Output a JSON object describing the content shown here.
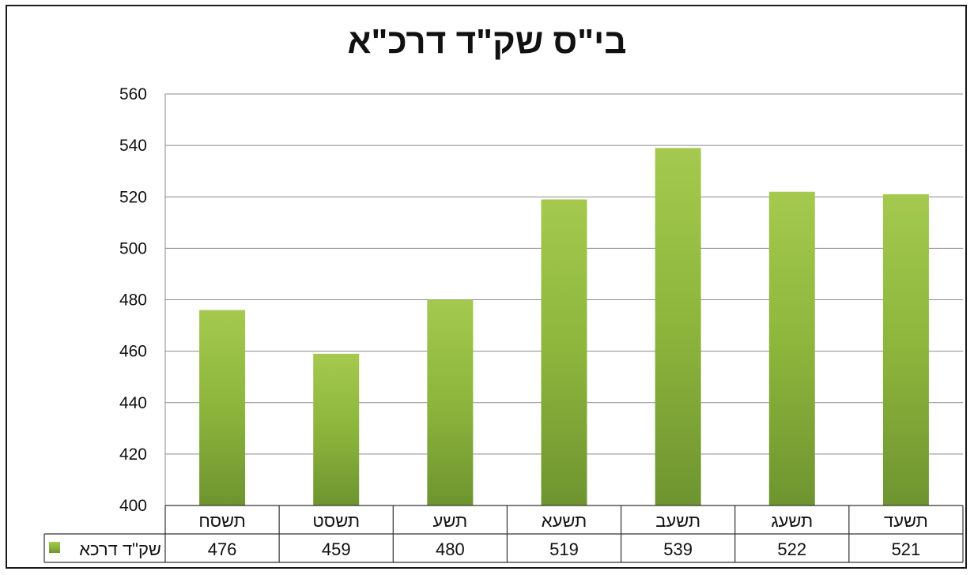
{
  "chart_data": {
    "type": "bar",
    "title": "בי\"ס שק\"ד דרכ\"א",
    "categories": [
      "תשסח",
      "תשסט",
      "תשע",
      "תשעא",
      "תשעב",
      "תשעג",
      "תשעד"
    ],
    "series": [
      {
        "name": "שק\"ד דרכא",
        "values": [
          476,
          459,
          480,
          519,
          539,
          522,
          521
        ],
        "color": "#8DB53C"
      }
    ],
    "yticks": [
      400,
      420,
      440,
      460,
      480,
      500,
      520,
      540,
      560
    ],
    "ylim": [
      400,
      560
    ],
    "grid": true,
    "legend": "data-table",
    "xlabel": "",
    "ylabel": ""
  }
}
